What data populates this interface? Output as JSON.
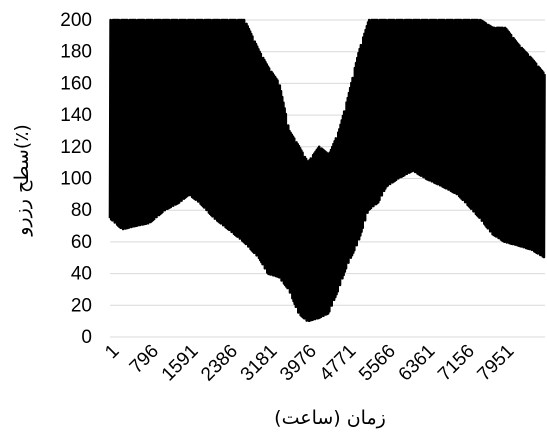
{
  "chart_data": {
    "type": "line",
    "title": "",
    "xlabel": "زمان (ساعت)",
    "ylabel": "سطح رزرو(٪)",
    "ylim": [
      0,
      200
    ],
    "yticks": [
      0,
      20,
      40,
      60,
      80,
      100,
      120,
      140,
      160,
      180,
      200
    ],
    "xlim": [
      1,
      8760
    ],
    "xticks": [
      1,
      796,
      1591,
      2386,
      3181,
      3976,
      4771,
      5566,
      6361,
      7156,
      7951
    ],
    "grid": "horizontal",
    "colors": {
      "series": "#000000",
      "grid": "#d9d9d9",
      "background": "#ffffff"
    },
    "series": [
      {
        "values_note_free": true,
        "x": [
          1,
          250,
          500,
          796,
          1100,
          1400,
          1591,
          1800,
          2100,
          2386,
          2700,
          3000,
          3181,
          3400,
          3600,
          3800,
          3976,
          4200,
          4400,
          4600,
          4771,
          5000,
          5200,
          5400,
          5566,
          5800,
          6100,
          6361,
          6700,
          7000,
          7156,
          7450,
          7700,
          7951,
          8200,
          8500,
          8760
        ],
        "upper": [
          200,
          200,
          200,
          200,
          200,
          200,
          200,
          200,
          200,
          200,
          200,
          180,
          170,
          160,
          130,
          120,
          110,
          120,
          115,
          130,
          150,
          180,
          200,
          200,
          200,
          200,
          200,
          200,
          200,
          200,
          200,
          200,
          195,
          195,
          185,
          175,
          165
        ],
        "lower": [
          75,
          68,
          70,
          72,
          80,
          85,
          90,
          85,
          75,
          68,
          60,
          50,
          40,
          38,
          30,
          15,
          10,
          12,
          15,
          30,
          45,
          60,
          80,
          85,
          95,
          100,
          105,
          100,
          95,
          90,
          85,
          75,
          65,
          60,
          58,
          55,
          50
        ]
      }
    ]
  }
}
